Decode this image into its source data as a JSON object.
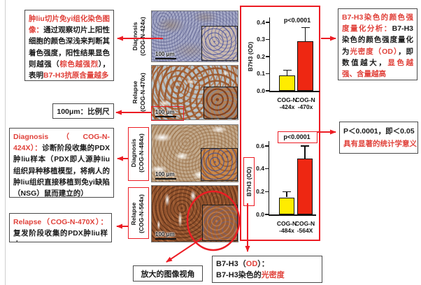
{
  "colors": {
    "accent_red": "#ec1c24",
    "text_red": "#e0413a",
    "text_black": "#1a1a1a",
    "bar_yellow": "#ffec00",
    "bar_red": "#ee2712"
  },
  "annotations": {
    "stain_box": {
      "segments": [
        {
          "t": "肿liu切片免yi组化染色图像：",
          "c": "red"
        },
        {
          "t": "通过观察切片上阳性细胞的颜色深浅来判断其着色强度，阳性结果显色则越强（",
          "c": "black"
        },
        {
          "t": "棕色越强烈",
          "c": "red"
        },
        {
          "t": "），表明",
          "c": "black"
        },
        {
          "t": "B7-H3抗原含量越多",
          "c": "red"
        }
      ]
    },
    "quant_box": {
      "segments": [
        {
          "t": "B7-H3染色的颜色强度量化分析：",
          "c": "red"
        },
        {
          "t": "B7-H3染色的颜色强度量化为",
          "c": "black"
        },
        {
          "t": "光密度（OD）",
          "c": "red"
        },
        {
          "t": "，即数值越大，",
          "c": "black"
        },
        {
          "t": "显色越强、含量越高",
          "c": "red"
        }
      ]
    },
    "pvalue_box": {
      "line1": "P＜0.0001，即＜0.05",
      "line2": "具有显著的统计学意义"
    },
    "scalebar_box": {
      "label": "100μm：比例尺"
    },
    "diagnosis_box": {
      "segments": [
        {
          "t": "Diagnosis（COG-N-424X）：",
          "c": "red"
        },
        {
          "t": "诊断阶段收集的PDX肿liu样本（PDX即人源肿liu组织异种移植模型，将病人的肿liu组织直接移植到免yi缺陷（NSG）鼠而建立的）",
          "c": "black"
        }
      ]
    },
    "relapse_box": {
      "segments": [
        {
          "t": "Relapse（COG-N-470X）：",
          "c": "red"
        },
        {
          "t": "复发阶段收集的PDX肿liu样本",
          "c": "black"
        }
      ]
    },
    "magnify_box": {
      "label": "放大的图像视角"
    },
    "od_box": {
      "line1_segments": [
        {
          "t": "B7-H3（",
          "c": "black"
        },
        {
          "t": "OD",
          "c": "red"
        },
        {
          "t": "）：",
          "c": "black"
        }
      ],
      "line2_segments": [
        {
          "t": "B7-H3染色的",
          "c": "black"
        },
        {
          "t": "光密度",
          "c": "red"
        }
      ]
    }
  },
  "figures": [
    {
      "label_line1": "Diagnosis",
      "label_line2": "(COG-N-424x)",
      "scale_label": "100 μm",
      "label_boxed": false,
      "scale_boxed": false
    },
    {
      "label_line1": "Relapse",
      "label_line2": "(COG-N-470x)",
      "scale_label": "100 μm",
      "label_boxed": false,
      "scale_boxed": true
    },
    {
      "label_line1": "Diagnosis",
      "label_line2": "(COG-N-484x)",
      "scale_label": "100 μm",
      "label_boxed": true,
      "scale_boxed": false
    },
    {
      "label_line1": "Relapse",
      "label_line2": "(COG-N-564x)",
      "scale_label": "100 μm",
      "label_boxed": true,
      "scale_boxed": false
    }
  ],
  "chart_data": [
    {
      "type": "bar",
      "title": "",
      "p_label": "p<0.0001",
      "p_label_boxed": false,
      "ylabel": "B7H3 (OD)",
      "ylim": [
        0,
        0.4
      ],
      "yticks": [
        0,
        0.1,
        0.2,
        0.3,
        0.4
      ],
      "categories": [
        "COG-N-424x",
        "COG-N-470x"
      ],
      "category_lines": [
        [
          "COG-N",
          "-424x"
        ],
        [
          "COG-N",
          "-470x"
        ]
      ],
      "values": [
        0.09,
        0.29
      ],
      "errors": [
        0.03,
        0.08
      ],
      "bar_colors": [
        "#ffec00",
        "#ee2712"
      ]
    },
    {
      "type": "bar",
      "title": "",
      "p_label": "p<0.0001",
      "p_label_boxed": true,
      "ylabel": "B7H3 (OD)",
      "ylabel_boxed": true,
      "ylim": [
        0,
        0.6
      ],
      "yticks": [
        0,
        0.2,
        0.4,
        0.6
      ],
      "categories": [
        "COG-N-484x",
        "COG-N-564X"
      ],
      "category_lines": [
        [
          "COG-N",
          "-484x"
        ],
        [
          "COG-N",
          "-564X"
        ]
      ],
      "values": [
        0.15,
        0.49
      ],
      "errors": [
        0.05,
        0.11
      ],
      "bar_colors": [
        "#ffec00",
        "#ee2712"
      ]
    }
  ]
}
